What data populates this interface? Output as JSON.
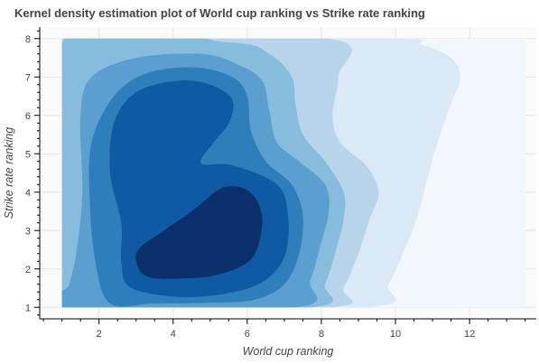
{
  "chart_data": {
    "type": "kde-contour",
    "title": "Kernel density estimation plot of World cup ranking vs Strike rate ranking",
    "xlabel": "World cup ranking",
    "ylabel": "Strike rate ranking",
    "xlim": [
      0.4,
      13.8
    ],
    "ylim": [
      0.7,
      8.3
    ],
    "x_ticks": [
      2,
      4,
      6,
      8,
      10,
      12
    ],
    "y_ticks": [
      1,
      2,
      3,
      4,
      5,
      6,
      7,
      8
    ],
    "grid": true,
    "background": "#fafafa",
    "levels": [
      {
        "color": "#f2f7fd",
        "points": [
          [
            1.0,
            1.0
          ],
          [
            13.5,
            1.0
          ],
          [
            13.5,
            8.0
          ],
          [
            1.0,
            8.0
          ]
        ]
      },
      {
        "color": "#dbe8f6",
        "points": [
          [
            1.0,
            1.0
          ],
          [
            9.2,
            1.0
          ],
          [
            9.8,
            1.6
          ],
          [
            10.2,
            2.4
          ],
          [
            10.6,
            3.4
          ],
          [
            10.9,
            4.5
          ],
          [
            11.2,
            5.5
          ],
          [
            11.5,
            6.3
          ],
          [
            11.75,
            7.0
          ],
          [
            11.5,
            7.5
          ],
          [
            10.7,
            7.85
          ],
          [
            9.8,
            8.0
          ],
          [
            1.0,
            8.0
          ]
        ]
      },
      {
        "color": "#b8d4ea",
        "points": [
          [
            1.0,
            1.0
          ],
          [
            8.2,
            1.0
          ],
          [
            8.6,
            1.5
          ],
          [
            9.0,
            2.4
          ],
          [
            9.3,
            3.3
          ],
          [
            9.55,
            4.0
          ],
          [
            9.2,
            4.7
          ],
          [
            8.5,
            5.3
          ],
          [
            8.3,
            6.0
          ],
          [
            8.45,
            7.0
          ],
          [
            8.2,
            8.0
          ],
          [
            1.0,
            8.0
          ]
        ]
      },
      {
        "color": "#87bcdd",
        "points": [
          [
            1.0,
            1.0
          ],
          [
            7.7,
            1.0
          ],
          [
            8.1,
            1.6
          ],
          [
            8.4,
            2.5
          ],
          [
            8.6,
            3.3
          ],
          [
            8.6,
            4.0
          ],
          [
            8.1,
            4.8
          ],
          [
            7.5,
            5.5
          ],
          [
            7.3,
            6.3
          ],
          [
            7.2,
            7.0
          ],
          [
            6.6,
            7.6
          ],
          [
            5.5,
            7.9
          ],
          [
            1.0,
            7.9
          ]
        ]
      },
      {
        "color": "#5a9fcf",
        "points": [
          [
            1.0,
            1.0
          ],
          [
            7.3,
            1.0
          ],
          [
            7.7,
            1.7
          ],
          [
            8.0,
            2.7
          ],
          [
            8.2,
            3.5
          ],
          [
            8.1,
            4.2
          ],
          [
            7.4,
            4.8
          ],
          [
            6.8,
            5.3
          ],
          [
            6.6,
            6.1
          ],
          [
            6.4,
            6.9
          ],
          [
            5.8,
            7.3
          ],
          [
            4.8,
            7.6
          ],
          [
            3.0,
            7.5
          ],
          [
            1.8,
            7.0
          ],
          [
            1.5,
            6.0
          ],
          [
            1.55,
            4.0
          ],
          [
            1.4,
            2.5
          ],
          [
            1.2,
            1.6
          ]
        ]
      },
      {
        "color": "#2f7ebc",
        "points": [
          [
            2.3,
            1.1
          ],
          [
            3.5,
            1.1
          ],
          [
            5.0,
            1.12
          ],
          [
            6.2,
            1.2
          ],
          [
            7.0,
            1.6
          ],
          [
            7.4,
            2.4
          ],
          [
            7.5,
            3.4
          ],
          [
            7.2,
            4.2
          ],
          [
            6.5,
            4.8
          ],
          [
            6.1,
            5.6
          ],
          [
            6.0,
            6.5
          ],
          [
            5.6,
            7.0
          ],
          [
            4.6,
            7.25
          ],
          [
            3.3,
            7.1
          ],
          [
            2.4,
            6.5
          ],
          [
            1.8,
            5.3
          ],
          [
            1.75,
            3.8
          ],
          [
            1.9,
            2.2
          ]
        ]
      },
      {
        "color": "#0f5aa2",
        "points": [
          [
            2.8,
            1.55
          ],
          [
            3.8,
            1.3
          ],
          [
            5.0,
            1.3
          ],
          [
            6.3,
            1.6
          ],
          [
            7.0,
            2.3
          ],
          [
            7.1,
            3.4
          ],
          [
            6.8,
            4.2
          ],
          [
            5.6,
            4.7
          ],
          [
            4.75,
            4.75
          ],
          [
            5.1,
            5.3
          ],
          [
            5.5,
            5.8
          ],
          [
            5.6,
            6.4
          ],
          [
            5.0,
            6.8
          ],
          [
            4.1,
            6.9
          ],
          [
            3.0,
            6.6
          ],
          [
            2.4,
            5.8
          ],
          [
            2.3,
            4.5
          ],
          [
            2.6,
            3.2
          ],
          [
            2.6,
            2.2
          ]
        ]
      },
      {
        "color": "#0a2f6b",
        "points": [
          [
            3.0,
            2.2
          ],
          [
            3.3,
            1.8
          ],
          [
            4.2,
            1.75
          ],
          [
            5.2,
            1.85
          ],
          [
            6.1,
            2.25
          ],
          [
            6.4,
            3.1
          ],
          [
            6.3,
            3.7
          ],
          [
            6.0,
            4.05
          ],
          [
            5.6,
            4.15
          ],
          [
            5.2,
            4.05
          ],
          [
            4.5,
            3.5
          ],
          [
            3.6,
            2.9
          ],
          [
            3.1,
            2.55
          ]
        ]
      }
    ]
  }
}
